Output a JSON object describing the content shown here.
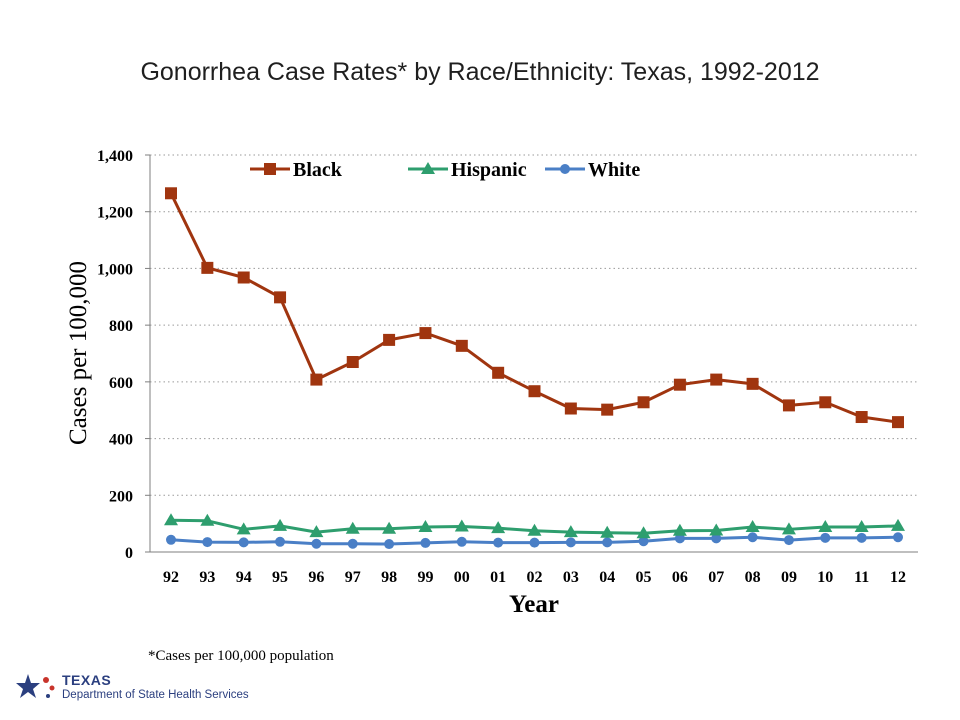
{
  "title": "Gonorrhea Case Rates* by Race/Ethnicity: Texas, 1992-2012",
  "footnote": "*Cases per 100,000 population",
  "logo": {
    "word": "TEXAS",
    "org": "Department of State Health Services"
  },
  "chart_data": {
    "type": "line",
    "xlabel": "Year",
    "ylabel": "Cases per 100,000",
    "categories": [
      "92",
      "93",
      "94",
      "95",
      "96",
      "97",
      "98",
      "99",
      "00",
      "01",
      "02",
      "03",
      "04",
      "05",
      "06",
      "07",
      "08",
      "09",
      "10",
      "11",
      "12"
    ],
    "ylim": [
      0,
      1400
    ],
    "yticks": [
      0,
      200,
      400,
      600,
      800,
      1000,
      1200,
      1400
    ],
    "ytick_labels": [
      "0",
      "200",
      "400",
      "600",
      "800",
      "1,000",
      "1,200",
      "1,400"
    ],
    "grid": "horizontal-dotted",
    "legend_position": "top",
    "series": [
      {
        "name": "Black",
        "color": "#a0350f",
        "marker": "square",
        "values": [
          1265,
          1002,
          968,
          898,
          608,
          670,
          748,
          772,
          727,
          632,
          567,
          506,
          502,
          528,
          590,
          608,
          593,
          517,
          528,
          476,
          458
        ]
      },
      {
        "name": "Hispanic",
        "color": "#2e9e6e",
        "marker": "triangle",
        "values": [
          112,
          110,
          80,
          92,
          70,
          82,
          82,
          88,
          90,
          84,
          75,
          70,
          68,
          66,
          75,
          76,
          88,
          80,
          88,
          88,
          92
        ]
      },
      {
        "name": "White",
        "color": "#4a7fc6",
        "marker": "circle",
        "values": [
          43,
          35,
          34,
          36,
          29,
          29,
          28,
          32,
          36,
          33,
          33,
          34,
          34,
          38,
          48,
          48,
          52,
          42,
          50,
          50,
          52
        ]
      }
    ]
  }
}
